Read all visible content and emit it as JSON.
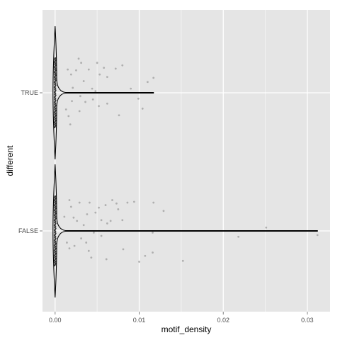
{
  "chart_data": {
    "type": "violin",
    "title": "",
    "xlabel": "motif_density",
    "ylabel": "different",
    "xlim": [
      -0.0015,
      0.0327
    ],
    "x_ticks": [
      0.0,
      0.01,
      0.02,
      0.03
    ],
    "x_tick_labels": [
      "0.00",
      "0.01",
      "0.02",
      "0.03"
    ],
    "categories": [
      "FALSE",
      "TRUE"
    ],
    "grid": true,
    "legend": "none",
    "colors": {
      "panel_background": "#e5e5e5",
      "grid_major": "#ffffff",
      "grid_minor": "#f2f2f2",
      "violin_line": "#000000",
      "point": "#a6a6a6",
      "axis_text": "#4d4d4d",
      "axis_title": "#000000"
    },
    "violins": [
      {
        "category": "TRUE",
        "x_min": 0.0,
        "x_max": 0.0117,
        "max_density_x": 0.0001,
        "points": [
          [
            0.0028,
            0.41
          ],
          [
            0.0031,
            0.36
          ],
          [
            0.004,
            0.28
          ],
          [
            0.005,
            0.36
          ],
          [
            0.0058,
            0.3
          ],
          [
            0.0062,
            0.19
          ],
          [
            0.0072,
            0.29
          ],
          [
            0.008,
            0.33
          ],
          [
            0.009,
            0.05
          ],
          [
            0.0099,
            -0.07
          ],
          [
            0.011,
            0.13
          ],
          [
            0.0117,
            0.18
          ],
          [
            0.0015,
            0.28
          ],
          [
            0.0019,
            0.22
          ],
          [
            0.0025,
            0.27
          ],
          [
            0.0021,
            0.06
          ],
          [
            0.0034,
            0.14
          ],
          [
            0.0044,
            0.05
          ],
          [
            0.0053,
            0.22
          ],
          [
            0.0062,
            -0.13
          ],
          [
            0.0076,
            -0.27
          ],
          [
            0.0104,
            -0.19
          ],
          [
            0.0036,
            -0.11
          ],
          [
            0.0029,
            -0.22
          ],
          [
            0.002,
            -0.1
          ],
          [
            0.0013,
            -0.2
          ],
          [
            0.0016,
            -0.28
          ],
          [
            0.0045,
            -0.08
          ],
          [
            0.0052,
            -0.16
          ],
          [
            0.0018,
            -0.38
          ],
          [
            0.003,
            -0.04
          ],
          [
            0.0048,
            0.02
          ]
        ]
      },
      {
        "category": "FALSE",
        "x_min": 0.0,
        "x_max": 0.0312,
        "max_density_x": 0.0001,
        "points": [
          [
            0.0017,
            0.37
          ],
          [
            0.0019,
            0.29
          ],
          [
            0.0022,
            0.16
          ],
          [
            0.0041,
            0.34
          ],
          [
            0.0048,
            0.22
          ],
          [
            0.0055,
            0.13
          ],
          [
            0.006,
            0.31
          ],
          [
            0.0068,
            0.37
          ],
          [
            0.0073,
            0.33
          ],
          [
            0.0075,
            0.26
          ],
          [
            0.0086,
            0.34
          ],
          [
            0.0094,
            0.35
          ],
          [
            0.0117,
            0.34
          ],
          [
            0.0129,
            0.24
          ],
          [
            0.0052,
            0.28
          ],
          [
            0.0062,
            0.09
          ],
          [
            0.0066,
            0.12
          ],
          [
            0.0011,
            0.17
          ],
          [
            0.0026,
            0.12
          ],
          [
            0.0034,
            0.07
          ],
          [
            0.008,
            0.13
          ],
          [
            0.0251,
            0.04
          ],
          [
            0.0312,
            -0.05
          ],
          [
            0.0218,
            -0.07
          ],
          [
            0.0116,
            -0.02
          ],
          [
            0.0046,
            -0.02
          ],
          [
            0.0031,
            -0.09
          ],
          [
            0.0037,
            -0.14
          ],
          [
            0.0017,
            -0.21
          ],
          [
            0.0023,
            -0.18
          ],
          [
            0.004,
            -0.24
          ],
          [
            0.0081,
            -0.22
          ],
          [
            0.0107,
            -0.3
          ],
          [
            0.0116,
            -0.26
          ],
          [
            0.0152,
            -0.36
          ],
          [
            0.01,
            -0.37
          ],
          [
            0.0061,
            -0.34
          ],
          [
            0.0043,
            -0.32
          ],
          [
            0.0014,
            -0.14
          ],
          [
            0.0029,
            0.34
          ],
          [
            0.0038,
            0.2
          ],
          [
            0.0055,
            -0.06
          ]
        ]
      }
    ]
  }
}
